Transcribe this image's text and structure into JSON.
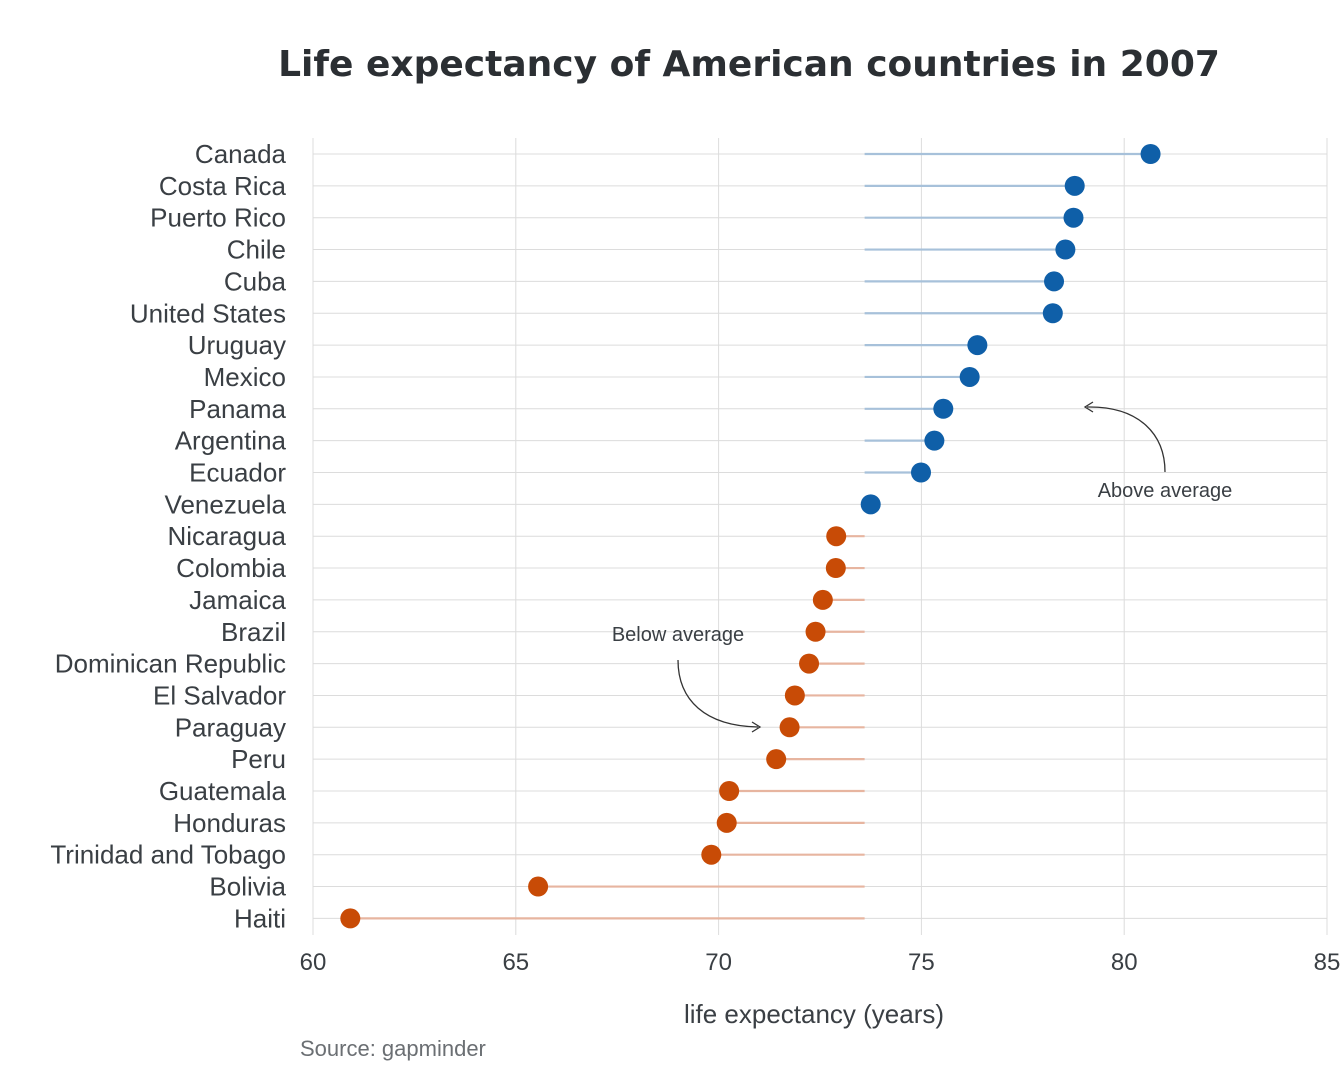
{
  "chart_data": {
    "type": "lollipop",
    "title": "Life expectancy of American countries in 2007",
    "xlabel": "life expectancy (years)",
    "source": "Source: gapminder",
    "xlim": [
      60,
      85
    ],
    "xticks": [
      60,
      65,
      70,
      75,
      80,
      85
    ],
    "average": 73.6,
    "grid": true,
    "colors": {
      "above": "#0f5fa8",
      "above_line": "#a7c1da",
      "below": "#c84b06",
      "below_line": "#e7b5a0",
      "text": "#3a3f44"
    },
    "categories": [
      "Canada",
      "Costa Rica",
      "Puerto Rico",
      "Chile",
      "Cuba",
      "United States",
      "Uruguay",
      "Mexico",
      "Panama",
      "Argentina",
      "Ecuador",
      "Venezuela",
      "Nicaragua",
      "Colombia",
      "Jamaica",
      "Brazil",
      "Dominican Republic",
      "El Salvador",
      "Paraguay",
      "Peru",
      "Guatemala",
      "Honduras",
      "Trinidad and Tobago",
      "Bolivia",
      "Haiti"
    ],
    "values": [
      80.65,
      78.78,
      78.75,
      78.55,
      78.27,
      78.24,
      76.38,
      76.19,
      75.54,
      75.32,
      74.99,
      73.75,
      72.9,
      72.89,
      72.57,
      72.39,
      72.23,
      71.88,
      71.75,
      71.42,
      70.26,
      70.2,
      69.82,
      65.55,
      60.92
    ],
    "annotations": {
      "above": "Above average",
      "below": "Below average"
    }
  }
}
